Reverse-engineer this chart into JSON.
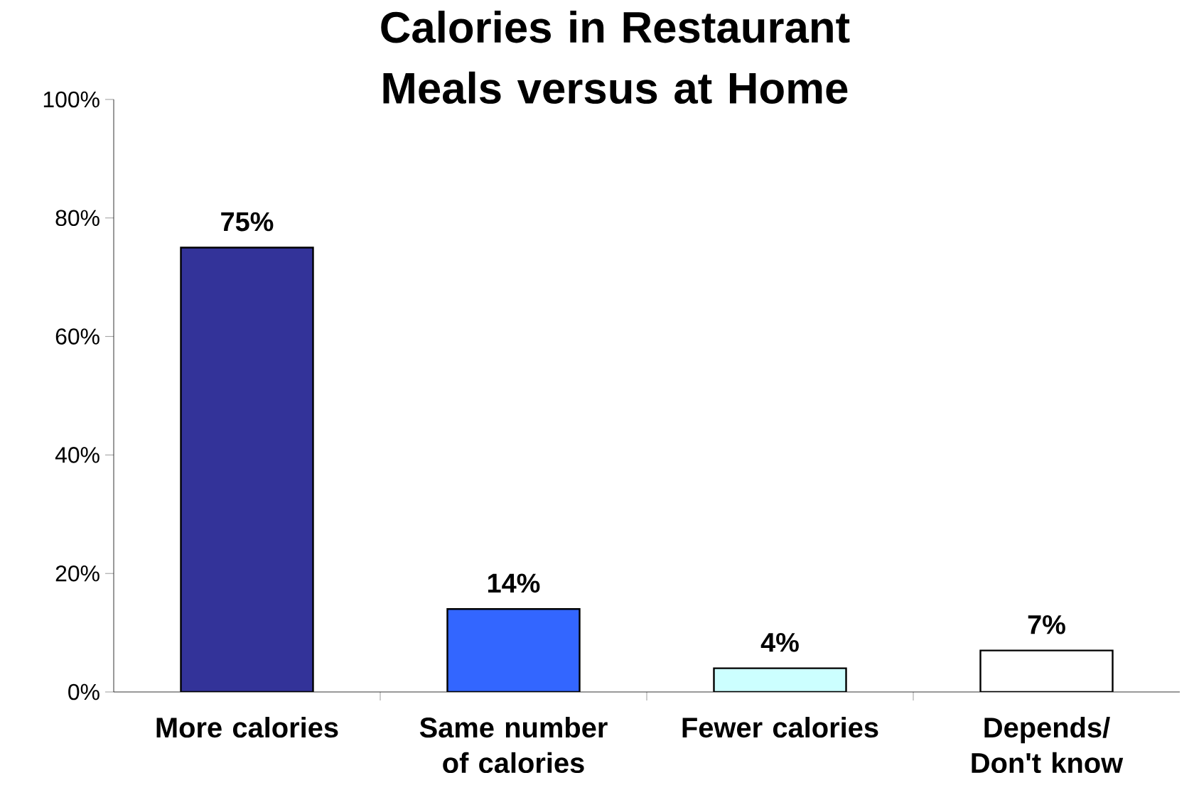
{
  "chart_data": {
    "type": "bar",
    "title": "Calories in Restaurant Meals versus at Home",
    "categories": [
      "More calories",
      "Same number of calories",
      "Fewer calories",
      "Depends/ Don't know"
    ],
    "values": [
      75,
      14,
      4,
      7
    ],
    "colors": [
      "#333399",
      "#3366ff",
      "#ccffff",
      "#ffffff"
    ],
    "value_labels": [
      "75%",
      "14%",
      "4%",
      "7%"
    ],
    "ylim": [
      0,
      100
    ],
    "yticks": [
      {
        "value": 0,
        "label": "0%"
      },
      {
        "value": 20,
        "label": "20%"
      },
      {
        "value": 40,
        "label": "40%"
      },
      {
        "value": 60,
        "label": "60%"
      },
      {
        "value": 80,
        "label": "80%"
      },
      {
        "value": 100,
        "label": "100%"
      }
    ],
    "grid": false
  }
}
